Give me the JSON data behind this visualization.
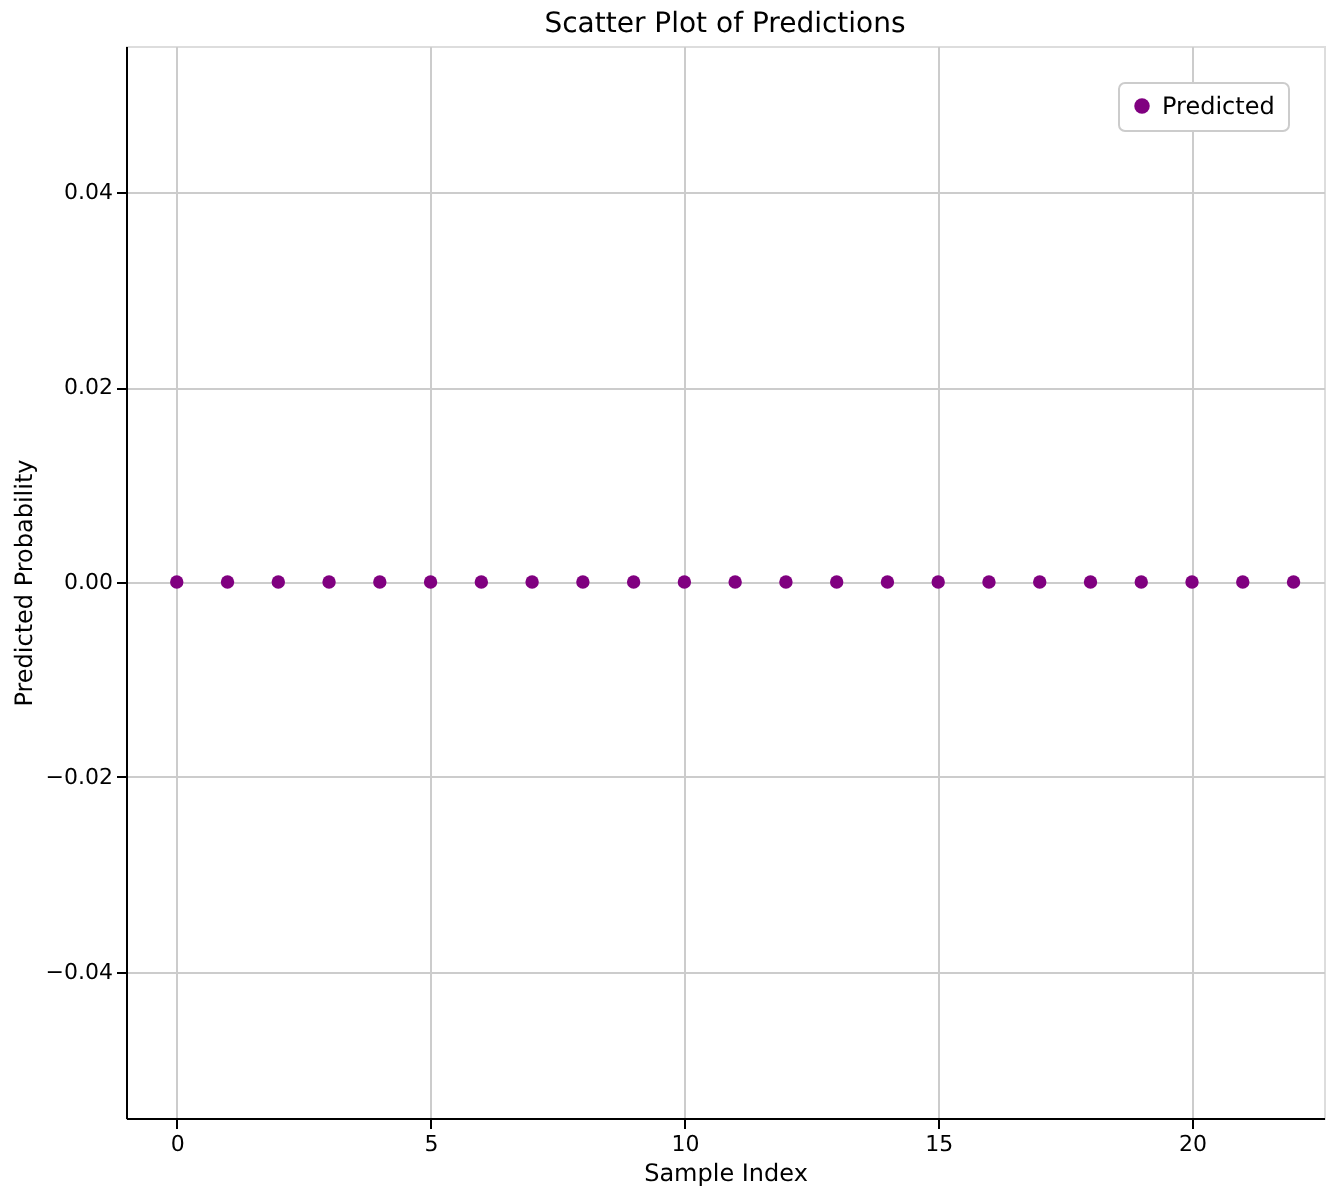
{
  "chart_data": {
    "type": "scatter",
    "title": "Scatter Plot of Predictions",
    "xlabel": "Sample Index",
    "ylabel": "Predicted Probability",
    "x": [
      0,
      1,
      2,
      3,
      4,
      5,
      6,
      7,
      8,
      9,
      10,
      11,
      12,
      13,
      14,
      15,
      16,
      17,
      18,
      19,
      20,
      21,
      22
    ],
    "series": [
      {
        "name": "Predicted",
        "color": "#800080",
        "values": [
          0,
          0,
          0,
          0,
          0,
          0,
          0,
          0,
          0,
          0,
          0,
          0,
          0,
          0,
          0,
          0,
          0,
          0,
          0,
          0,
          0,
          0,
          0
        ]
      }
    ],
    "xlim": [
      -1.0,
      22.6
    ],
    "ylim": [
      -0.055,
      0.055
    ],
    "xticks": [
      0,
      5,
      10,
      15,
      20
    ],
    "yticks": [
      {
        "value": -0.04,
        "label": "−0.04"
      },
      {
        "value": -0.02,
        "label": "−0.02"
      },
      {
        "value": 0,
        "label": "0.00"
      },
      {
        "value": 0.02,
        "label": "0.02"
      },
      {
        "value": 0.04,
        "label": "0.04"
      }
    ],
    "grid": true,
    "legend": "top right",
    "marker": "circle"
  }
}
